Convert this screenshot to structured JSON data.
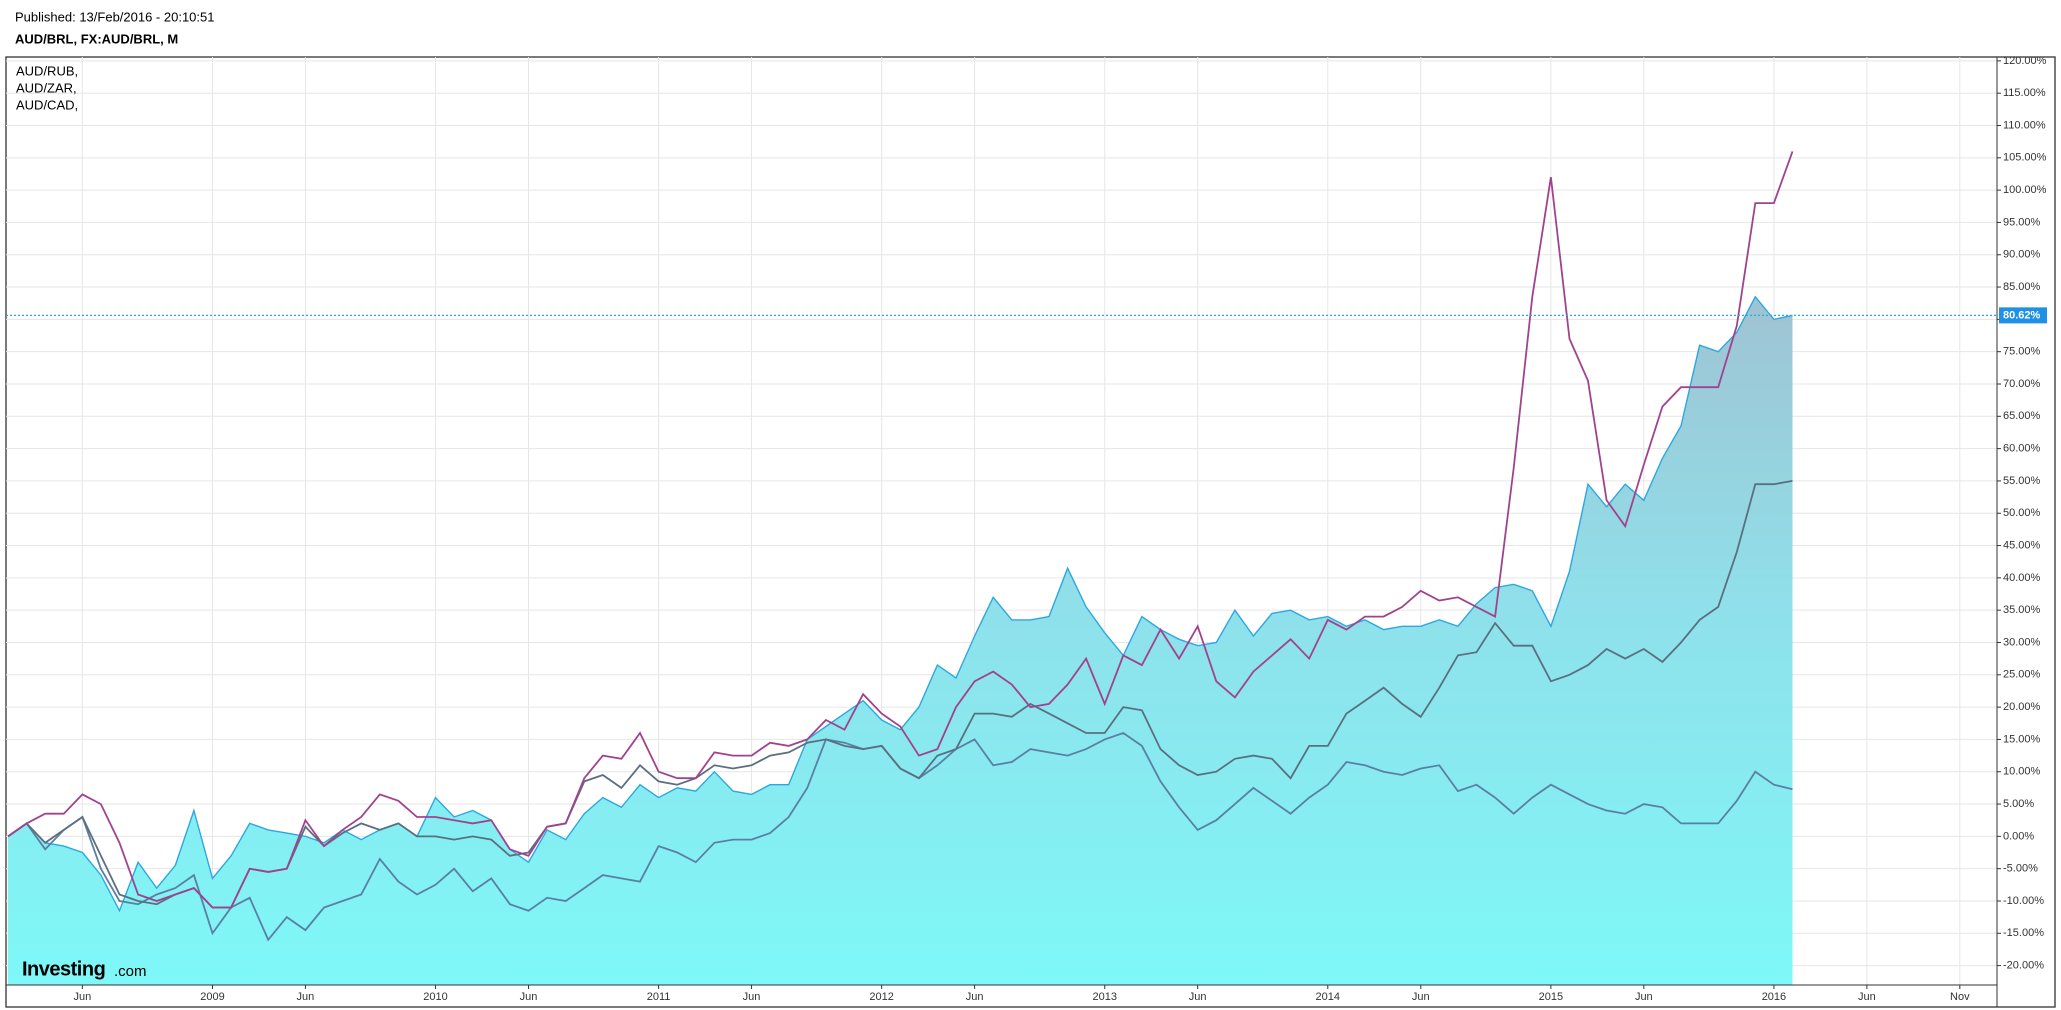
{
  "header": {
    "published": "Published: 13/Feb/2016 - 20:10:51",
    "subtitle": "AUD/BRL, FX:AUD/BRL, M"
  },
  "logo": {
    "main": "Investing",
    "suffix": ".com"
  },
  "chart_data": {
    "type": "line",
    "grid": true,
    "legend": "top-left",
    "x": [
      "2008-02",
      "2008-03",
      "2008-04",
      "2008-05",
      "2008-06",
      "2008-07",
      "2008-08",
      "2008-09",
      "2008-10",
      "2008-11",
      "2008-12",
      "2009-01",
      "2009-02",
      "2009-03",
      "2009-04",
      "2009-05",
      "2009-06",
      "2009-07",
      "2009-08",
      "2009-09",
      "2009-10",
      "2009-11",
      "2009-12",
      "2010-01",
      "2010-02",
      "2010-03",
      "2010-04",
      "2010-05",
      "2010-06",
      "2010-07",
      "2010-08",
      "2010-09",
      "2010-10",
      "2010-11",
      "2010-12",
      "2011-01",
      "2011-02",
      "2011-03",
      "2011-04",
      "2011-05",
      "2011-06",
      "2011-07",
      "2011-08",
      "2011-09",
      "2011-10",
      "2011-11",
      "2011-12",
      "2012-01",
      "2012-02",
      "2012-03",
      "2012-04",
      "2012-05",
      "2012-06",
      "2012-07",
      "2012-08",
      "2012-09",
      "2012-10",
      "2012-11",
      "2012-12",
      "2013-01",
      "2013-02",
      "2013-03",
      "2013-04",
      "2013-05",
      "2013-06",
      "2013-07",
      "2013-08",
      "2013-09",
      "2013-10",
      "2013-11",
      "2013-12",
      "2014-01",
      "2014-02",
      "2014-03",
      "2014-04",
      "2014-05",
      "2014-06",
      "2014-07",
      "2014-08",
      "2014-09",
      "2014-10",
      "2014-11",
      "2014-12",
      "2015-01",
      "2015-02",
      "2015-03",
      "2015-04",
      "2015-05",
      "2015-06",
      "2015-07",
      "2015-08",
      "2015-09",
      "2015-10",
      "2015-11",
      "2015-12",
      "2016-01",
      "2016-02"
    ],
    "xlim": [
      "2008-02",
      "2017-01"
    ],
    "xticks": [
      {
        "value": "2008-06",
        "label": "Jun"
      },
      {
        "value": "2009-01",
        "label": "2009"
      },
      {
        "value": "2009-06",
        "label": "Jun"
      },
      {
        "value": "2010-01",
        "label": "2010"
      },
      {
        "value": "2010-06",
        "label": "Jun"
      },
      {
        "value": "2011-01",
        "label": "2011"
      },
      {
        "value": "2011-06",
        "label": "Jun"
      },
      {
        "value": "2012-01",
        "label": "2012"
      },
      {
        "value": "2012-06",
        "label": "Jun"
      },
      {
        "value": "2013-01",
        "label": "2013"
      },
      {
        "value": "2013-06",
        "label": "Jun"
      },
      {
        "value": "2014-01",
        "label": "2014"
      },
      {
        "value": "2014-06",
        "label": "Jun"
      },
      {
        "value": "2015-01",
        "label": "2015"
      },
      {
        "value": "2015-06",
        "label": "Jun"
      },
      {
        "value": "2016-01",
        "label": "2016"
      },
      {
        "value": "2016-06",
        "label": "Jun"
      },
      {
        "value": "2016-11",
        "label": "Nov"
      }
    ],
    "ylim": [
      -23,
      120.6
    ],
    "yticks": [
      {
        "value": -20,
        "label": "-20.00%"
      },
      {
        "value": -15,
        "label": "-15.00%"
      },
      {
        "value": -10,
        "label": "-10.00%"
      },
      {
        "value": -5,
        "label": "-5.00%"
      },
      {
        "value": 0,
        "label": "0.00%"
      },
      {
        "value": 5,
        "label": "5.00%"
      },
      {
        "value": 10,
        "label": "10.00%"
      },
      {
        "value": 15,
        "label": "15.00%"
      },
      {
        "value": 20,
        "label": "20.00%"
      },
      {
        "value": 25,
        "label": "25.00%"
      },
      {
        "value": 30,
        "label": "30.00%"
      },
      {
        "value": 35,
        "label": "35.00%"
      },
      {
        "value": 40,
        "label": "40.00%"
      },
      {
        "value": 45,
        "label": "45.00%"
      },
      {
        "value": 50,
        "label": "50.00%"
      },
      {
        "value": 55,
        "label": "55.00%"
      },
      {
        "value": 60,
        "label": "60.00%"
      },
      {
        "value": 65,
        "label": "65.00%"
      },
      {
        "value": 70,
        "label": "70.00%"
      },
      {
        "value": 75,
        "label": "75.00%"
      },
      {
        "value": 80,
        "label": "80.00%"
      },
      {
        "value": 85,
        "label": "85.00%"
      },
      {
        "value": 90,
        "label": "90.00%"
      },
      {
        "value": 95,
        "label": "95.00%"
      },
      {
        "value": 100,
        "label": "100.00%"
      },
      {
        "value": 105,
        "label": "105.00%"
      },
      {
        "value": 110,
        "label": "110.00%"
      },
      {
        "value": 115,
        "label": "115.00%"
      },
      {
        "value": 120,
        "label": "120.00%"
      }
    ],
    "current_label": "80.62%",
    "series": [
      {
        "color": "#2ea7e0",
        "area": true,
        "values": [
          0,
          2,
          -1,
          -1.5,
          -2.5,
          -6,
          -11.5,
          -4,
          -8,
          -4.5,
          4,
          -6.5,
          -3,
          2,
          1,
          0.5,
          0,
          -1,
          1,
          -0.5,
          1,
          2,
          0,
          6,
          3,
          4,
          2.5,
          -2,
          -4,
          1,
          -0.5,
          3.5,
          6,
          4.5,
          8,
          6,
          7.5,
          7,
          10,
          7,
          6.5,
          8,
          8,
          15,
          17,
          19,
          21,
          18,
          16.5,
          20,
          26.5,
          24.5,
          31,
          37,
          33.5,
          33.5,
          34,
          41.5,
          35.5,
          31.5,
          28,
          34,
          32,
          30.5,
          29.5,
          30,
          35,
          31,
          34.5,
          35,
          33.5,
          34,
          32.5,
          33.5,
          32,
          32.5,
          32.5,
          33.5,
          32.5,
          36,
          38.5,
          39,
          38,
          32.5,
          41,
          54.5,
          51,
          54.5,
          52,
          58.5,
          63.5,
          76,
          75,
          78,
          83.5,
          80,
          80.62
        ]
      },
      {
        "name": "AUD/CAD,",
        "color": "#5b7fa3",
        "values": [
          0,
          2,
          -2,
          1,
          3,
          -5,
          -10,
          -10.5,
          -9,
          -8,
          -6,
          -15,
          -11,
          -9.5,
          -16,
          -12.5,
          -14.5,
          -11,
          -10,
          -9,
          -3.5,
          -7,
          -9,
          -7.5,
          -5,
          -8.5,
          -6.5,
          -10.5,
          -11.5,
          -9.5,
          -10,
          -8,
          -6,
          -6.5,
          -7,
          -1.5,
          -2.5,
          -4,
          -1,
          -0.5,
          -0.5,
          0.5,
          3,
          7.5,
          15,
          14.5,
          13.5,
          14,
          10.5,
          9,
          11,
          13.5,
          15,
          11,
          11.5,
          13.5,
          13,
          12.5,
          13.5,
          15,
          16,
          14,
          8.5,
          4.5,
          1,
          2.5,
          5,
          7.5,
          5.5,
          3.5,
          6,
          8,
          11.5,
          11,
          10,
          9.5,
          10.5,
          11,
          7,
          8,
          6,
          3.5,
          6,
          8,
          6.5,
          5,
          4,
          3.5,
          5,
          4.5,
          2,
          2,
          2,
          5.5,
          10,
          8,
          7.3
        ]
      },
      {
        "name": "AUD/ZAR,",
        "color": "#5a6f80",
        "values": [
          0,
          2,
          -1,
          1,
          3,
          -3,
          -9,
          -10,
          -10.5,
          -9,
          -8,
          -11,
          -11,
          -5,
          -5.5,
          -5,
          1.5,
          -1.5,
          0.5,
          2,
          1,
          2,
          0,
          0,
          -0.5,
          0,
          -0.5,
          -3,
          -2.5,
          1.5,
          2,
          8.5,
          9.5,
          7.5,
          11,
          8.5,
          8,
          9,
          11,
          10.5,
          11,
          12.5,
          13,
          14.5,
          15,
          14,
          13.5,
          14,
          10.5,
          9,
          12.5,
          13.5,
          19,
          19,
          18.5,
          20.5,
          19,
          17.5,
          16,
          16,
          20,
          19.5,
          13.5,
          11,
          9.5,
          10,
          12,
          12.5,
          12,
          9,
          14,
          14,
          19,
          21,
          23,
          20.5,
          18.5,
          23,
          28,
          28.5,
          33,
          29.5,
          29.5,
          24,
          25,
          26.5,
          29,
          27.5,
          29,
          27,
          30,
          33.5,
          35.5,
          44,
          54.5,
          54.5,
          55
        ]
      },
      {
        "name": "AUD/RUB,",
        "color": "#a0438f",
        "values": [
          0,
          2,
          3.5,
          3.5,
          6.5,
          5,
          -1,
          -9,
          -10,
          -9,
          -8,
          -11,
          -11,
          -5,
          -5.5,
          -5,
          2.5,
          -1.5,
          1,
          3,
          6.5,
          5.5,
          3,
          3,
          2.5,
          2,
          2.5,
          -2,
          -3,
          1.5,
          2,
          9,
          12.5,
          12,
          16,
          10,
          9,
          9,
          13,
          12.5,
          12.5,
          14.5,
          14,
          15,
          18,
          16.5,
          22,
          19,
          17,
          12.5,
          13.5,
          20,
          24,
          25.5,
          23.5,
          20,
          20.5,
          23.5,
          27.5,
          20.5,
          28,
          26.5,
          32,
          27.5,
          32.5,
          24,
          21.5,
          25.5,
          28,
          30.5,
          27.5,
          33.5,
          32,
          34,
          34,
          35.5,
          38,
          36.5,
          37,
          35.5,
          34,
          57,
          83.5,
          102,
          77,
          70.5,
          52,
          48,
          57.5,
          66.5,
          69.5,
          69.5,
          69.5,
          79,
          98,
          98,
          106
        ]
      }
    ]
  }
}
